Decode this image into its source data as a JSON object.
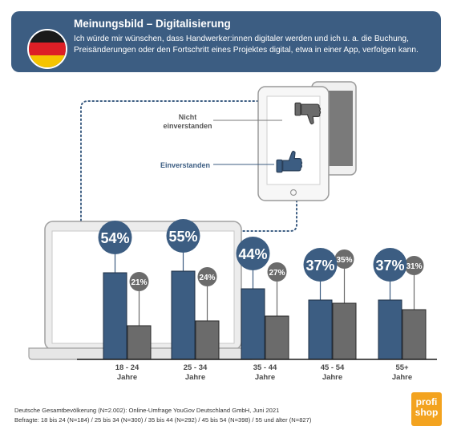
{
  "header": {
    "title": "Meinungsbild – Digitalisierung",
    "text": "Ich würde mir wünschen, dass Handwerker:innen digitaler werden und ich u. a. die Buchung, Preisänderungen oder den Fortschritt eines Projektes digital, etwa in einer App, verfolgen kann."
  },
  "flag_colors": [
    "#1a1a1a",
    "#dd1f26",
    "#f6c400"
  ],
  "legend": {
    "disagree": "Nicht einverstanden",
    "agree": "Einverstanden"
  },
  "colors": {
    "agree": "#3c5d82",
    "disagree": "#6b6b6b",
    "dotted": "#3c5d82"
  },
  "chart_data": {
    "type": "bar",
    "categories": [
      "18 - 24 Jahre",
      "25 - 34 Jahre",
      "35 - 44 Jahre",
      "45 - 54 Jahre",
      "55+ Jahre"
    ],
    "series": [
      {
        "name": "Einverstanden",
        "values": [
          54,
          55,
          44,
          37,
          37
        ]
      },
      {
        "name": "Nicht einverstanden",
        "values": [
          21,
          24,
          27,
          35,
          31
        ]
      }
    ],
    "data_labels": {
      "agree": [
        "54%",
        "55%",
        "44%",
        "37%",
        "37%"
      ],
      "disagree": [
        "21%",
        "24%",
        "27%",
        "35%",
        "31%"
      ]
    },
    "category_labels": [
      [
        "18 - 24",
        "Jahre"
      ],
      [
        "25 - 34",
        "Jahre"
      ],
      [
        "35 - 44",
        "Jahre"
      ],
      [
        "45 - 54",
        "Jahre"
      ],
      [
        "55+",
        "Jahre"
      ]
    ],
    "ylim": [
      0,
      100
    ]
  },
  "footer": {
    "line1": "Deutsche Gesamtbevölkerung (N=2.002): Online-Umfrage YouGov Deutschland GmbH, Juni 2021",
    "line2": "Befragte: 18 bis 24 (N=184) / 25 bis 34 (N=300) / 35 bis 44 (N=292) / 45 bis 54 (N=398) / 55 und älter (N=827)"
  },
  "logo": {
    "line1": "profi",
    "line2": "shop"
  }
}
